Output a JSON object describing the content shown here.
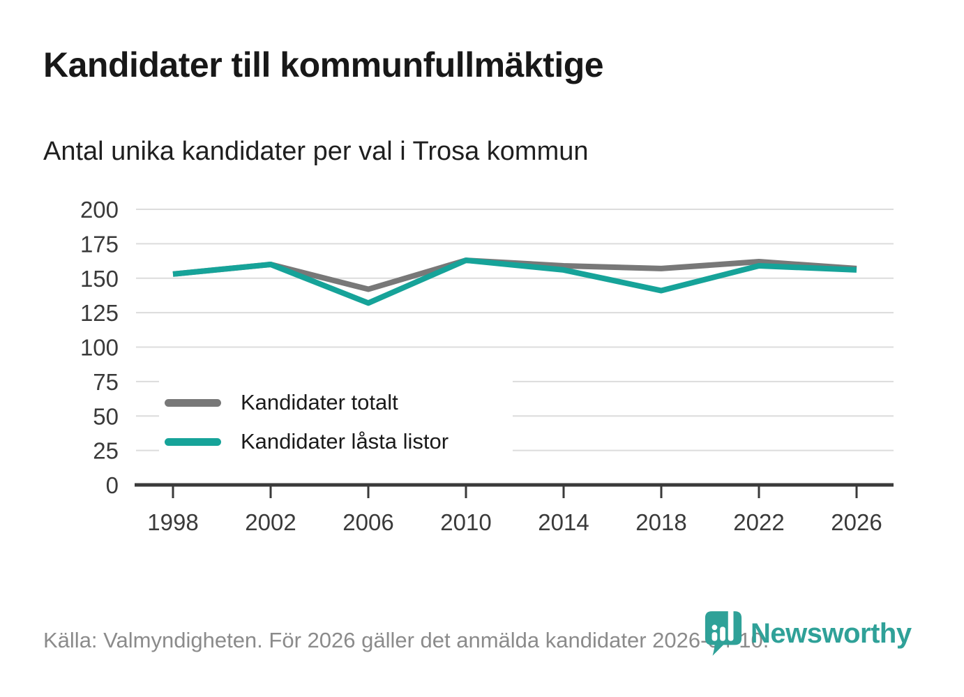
{
  "header": {
    "title": "Kandidater till kommunfullmäktige",
    "subtitle": "Antal unika kandidater per val i Trosa kommun"
  },
  "chart_data": {
    "type": "line",
    "categories": [
      "1998",
      "2002",
      "2006",
      "2010",
      "2014",
      "2018",
      "2022",
      "2026"
    ],
    "series": [
      {
        "name": "Kandidater totalt",
        "color": "#787878",
        "values": [
          153,
          160,
          142,
          163,
          159,
          157,
          162,
          157
        ]
      },
      {
        "name": "Kandidater låsta listor",
        "color": "#16A399",
        "values": [
          153,
          160,
          132,
          163,
          156,
          141,
          159,
          156
        ]
      }
    ],
    "title": "Kandidater till kommunfullmäktige",
    "subtitle": "Antal unika kandidater per val i Trosa kommun",
    "xlabel": "",
    "ylabel": "",
    "ylim": [
      0,
      200
    ],
    "yticks": [
      0,
      25,
      50,
      75,
      100,
      125,
      150,
      175,
      200
    ],
    "grid": true,
    "legend_position": "inside-bottom-left"
  },
  "footer": {
    "source": "Källa: Valmyndigheten. För 2026 gäller det anmälda kandidater 2026-04-10.",
    "brand": "Newsworthy"
  },
  "colors": {
    "accent_teal": "#16A399",
    "line_gray": "#787878",
    "brand_teal": "#2FA198",
    "axis": "#3a3a3a",
    "gridline": "#dcdcdc",
    "footer_text": "#8b8b8b"
  }
}
